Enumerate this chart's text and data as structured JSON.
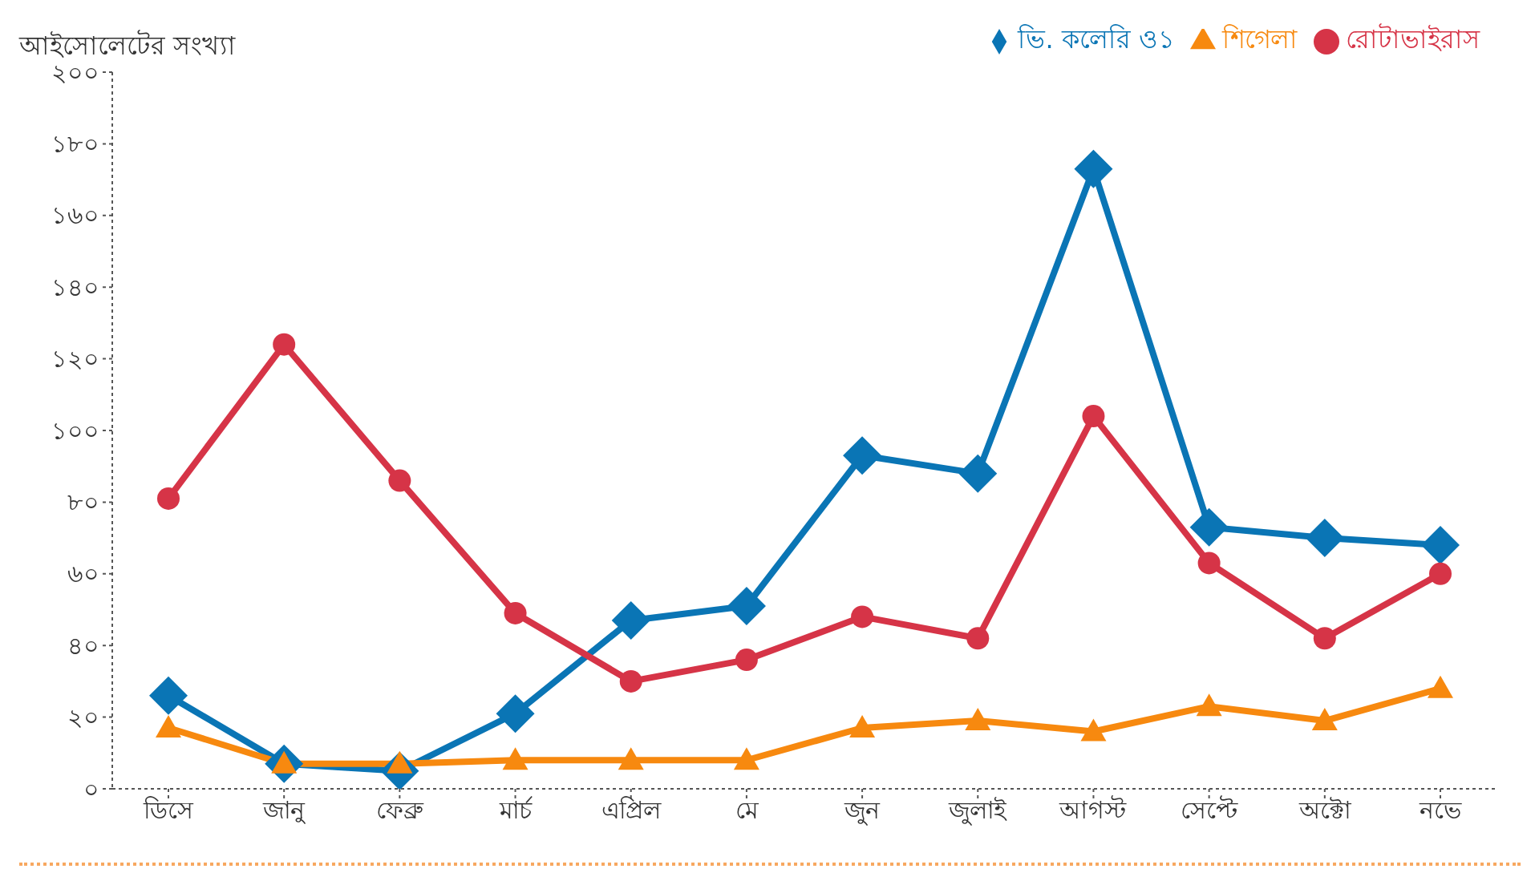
{
  "chart_data": {
    "type": "line",
    "ylabel": "আইসোলেটের সংখ্যা",
    "categories": [
      "ডিসে",
      "জানু",
      "ফেব্রু",
      "মার্চ",
      "এপ্রিল",
      "মে",
      "জুন",
      "জুলাই",
      "আগস্ট",
      "সেপ্টে",
      "অক্টো",
      "নভে"
    ],
    "series": [
      {
        "name": "ভি. কলেরি ও১",
        "color": "#0a75b5",
        "marker": "diamond",
        "values": [
          26,
          7,
          5,
          21,
          47,
          51,
          93,
          88,
          173,
          73,
          70,
          68
        ]
      },
      {
        "name": "শিগেলা",
        "color": "#f7890f",
        "marker": "triangle",
        "values": [
          17,
          7,
          7,
          8,
          8,
          8,
          17,
          19,
          16,
          23,
          19,
          28
        ]
      },
      {
        "name": "রোটাভাইরাস",
        "color": "#d63447",
        "marker": "circle",
        "values": [
          81,
          124,
          86,
          49,
          30,
          36,
          48,
          42,
          104,
          63,
          42,
          60
        ]
      }
    ],
    "ylim": [
      0,
      200
    ],
    "yticks": [
      {
        "value": 0,
        "label": "০"
      },
      {
        "value": 20,
        "label": "২০"
      },
      {
        "value": 40,
        "label": "৪০"
      },
      {
        "value": 60,
        "label": "৬০"
      },
      {
        "value": 80,
        "label": "৮০"
      },
      {
        "value": 100,
        "label": "১০০"
      },
      {
        "value": 120,
        "label": "১২০"
      },
      {
        "value": 140,
        "label": "১৪০"
      },
      {
        "value": 160,
        "label": "১৬০"
      },
      {
        "value": 180,
        "label": "১৮০"
      },
      {
        "value": 200,
        "label": "২০০"
      }
    ],
    "grid": false,
    "legend": "top right",
    "line_style": "solid"
  }
}
